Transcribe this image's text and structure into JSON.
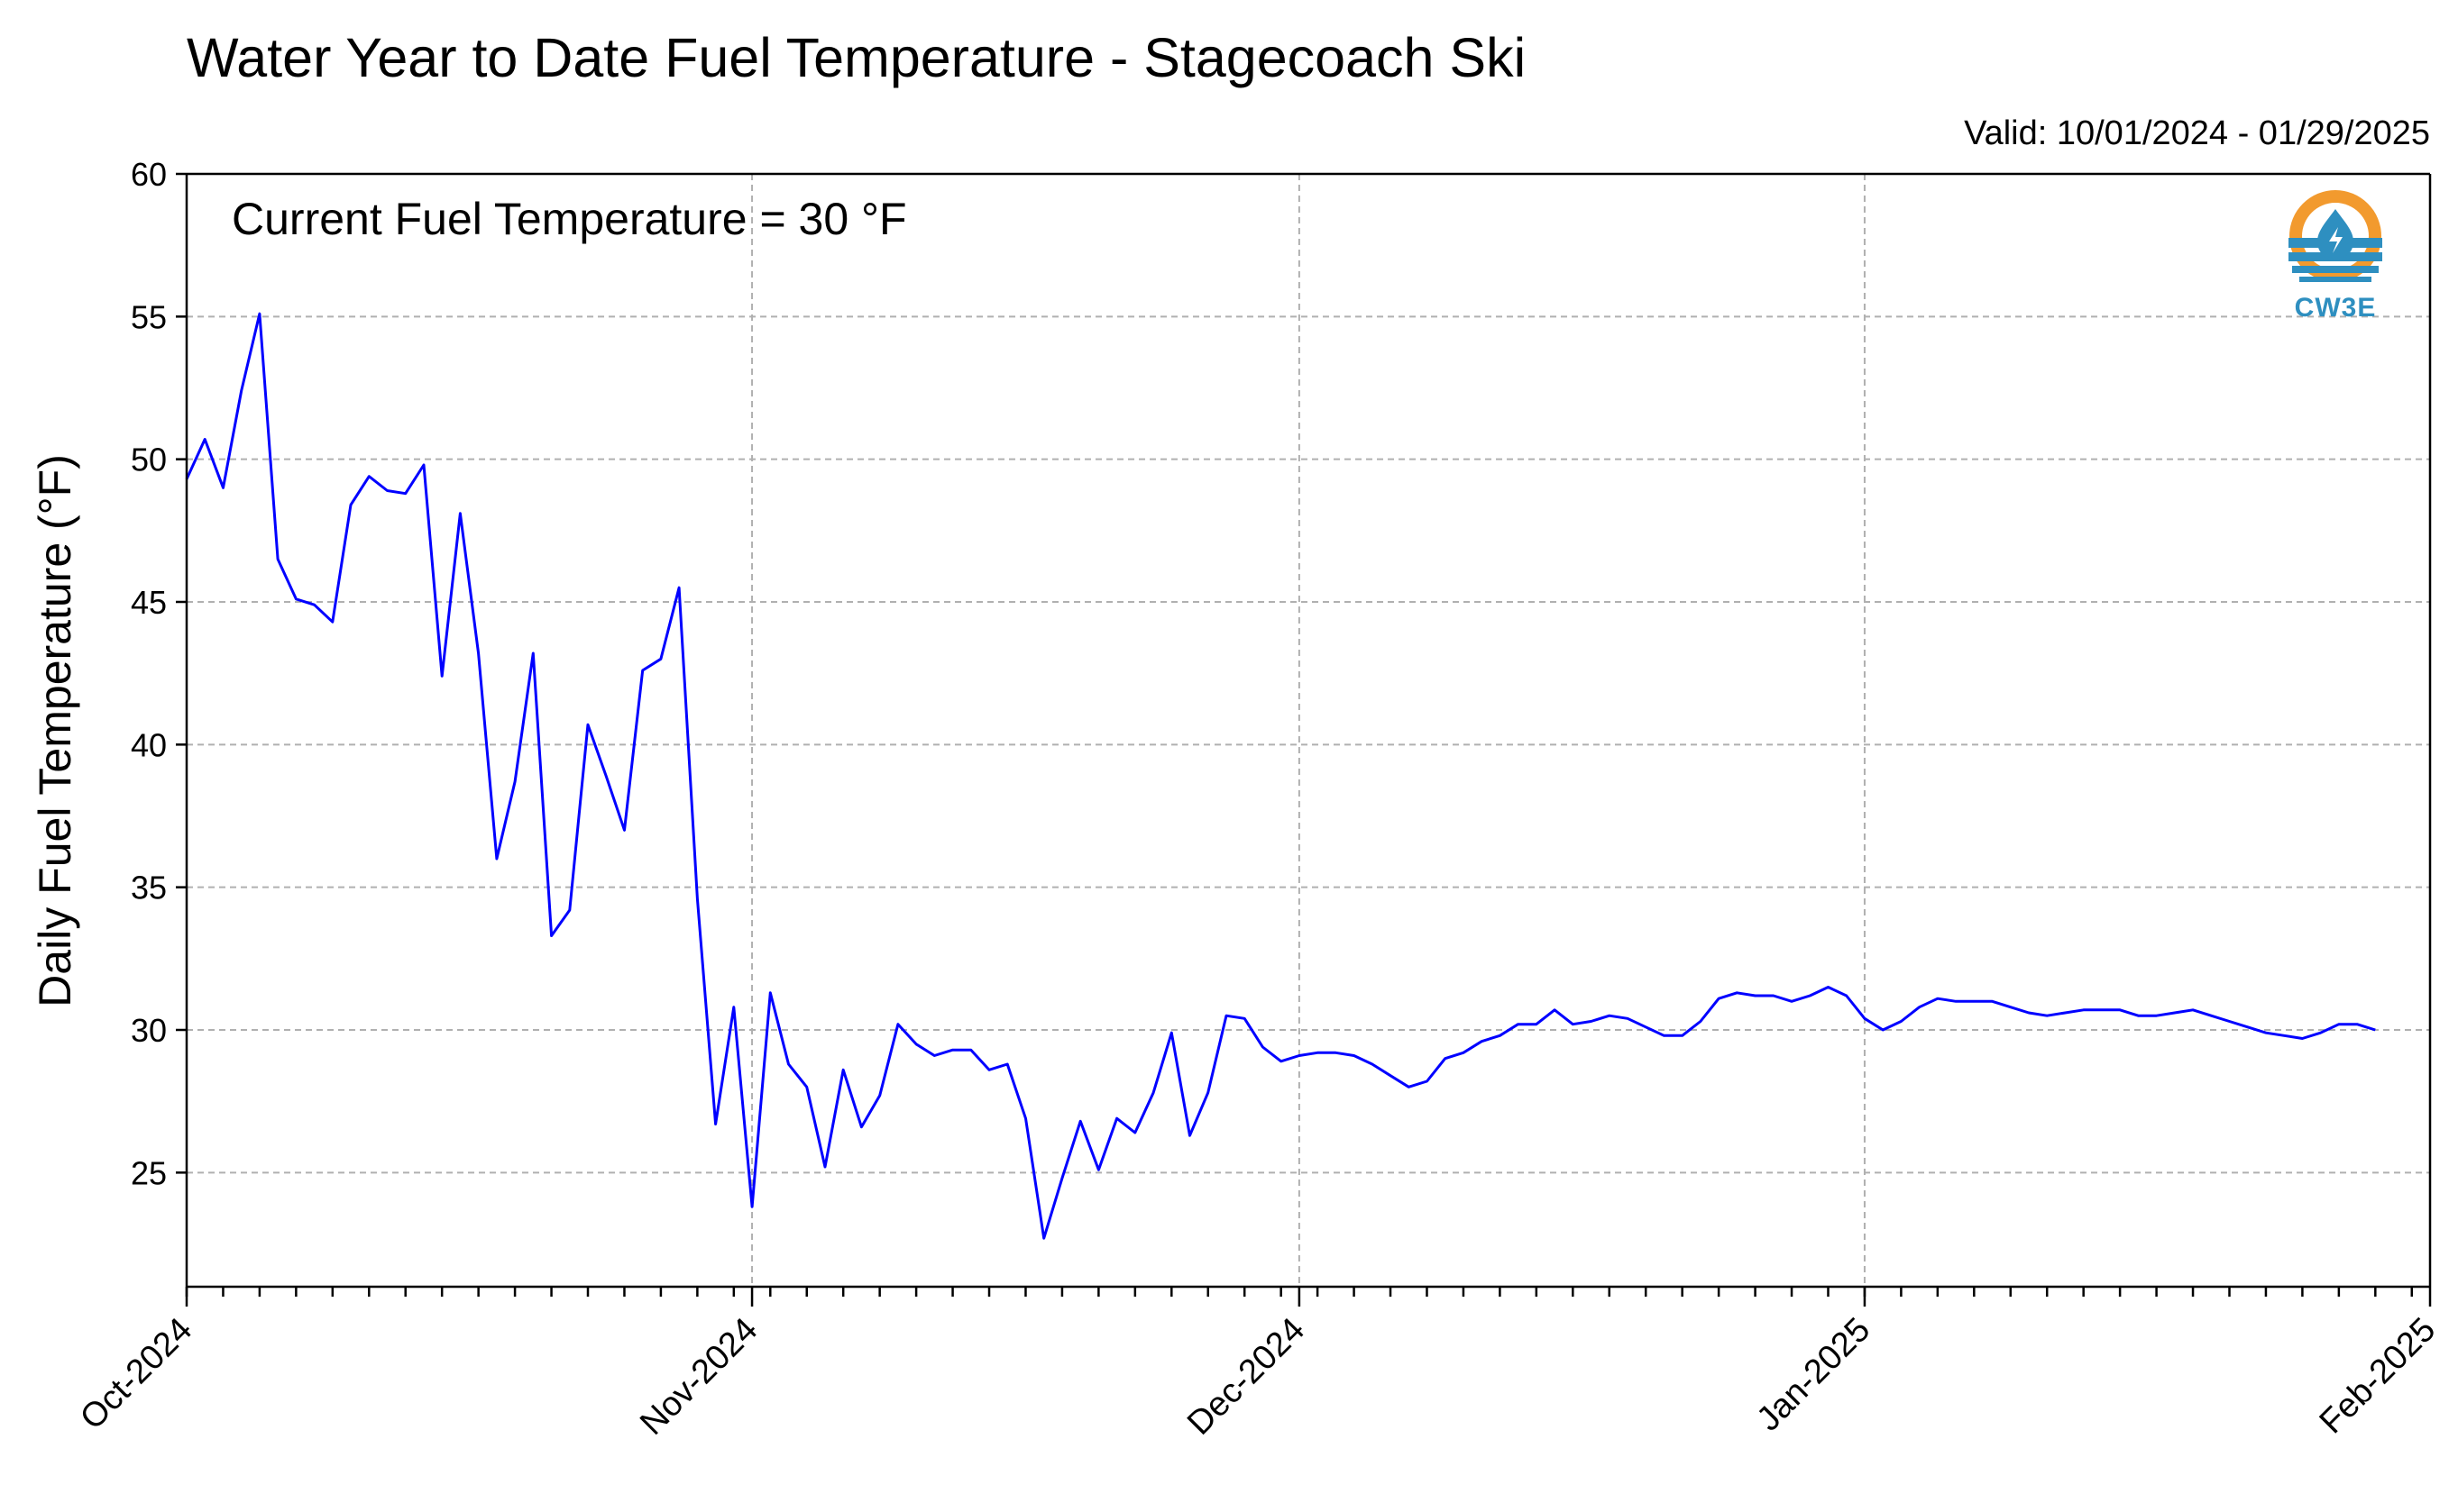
{
  "colors": {
    "series": "#0000ff",
    "grid": "#b0b0b0",
    "logo_orange": "#f29a2e",
    "logo_blue": "#2e8fc0"
  },
  "logo": {
    "text": "CW3E",
    "icon": "cw3e-water-drop-logo"
  },
  "chart_data": {
    "type": "line",
    "title": "Water Year to Date Fuel Temperature - Stagecoach Ski",
    "subtitle": "Valid: 10/01/2024 - 01/29/2025",
    "annotation": "Current Fuel Temperature = 30 °F",
    "ylabel": "Daily Fuel Temperature (°F)",
    "xlabel": "",
    "xlim": [
      "2024-10-01",
      "2025-02-01"
    ],
    "ylim": [
      21,
      60
    ],
    "yticks": [
      25,
      30,
      35,
      40,
      45,
      50,
      55,
      60
    ],
    "xticks": [
      {
        "date": "2024-10-01",
        "label": "Oct-2024"
      },
      {
        "date": "2024-11-01",
        "label": "Nov-2024"
      },
      {
        "date": "2024-12-01",
        "label": "Dec-2024"
      },
      {
        "date": "2025-01-01",
        "label": "Jan-2025"
      },
      {
        "date": "2025-02-01",
        "label": "Feb-2025"
      }
    ],
    "grid": true,
    "legend": "none",
    "series": [
      {
        "x": [
          "2024-10-01",
          "2024-10-02",
          "2024-10-03",
          "2024-10-04",
          "2024-10-05",
          "2024-10-06",
          "2024-10-07",
          "2024-10-08",
          "2024-10-09",
          "2024-10-10",
          "2024-10-11",
          "2024-10-12",
          "2024-10-13",
          "2024-10-14",
          "2024-10-15",
          "2024-10-16",
          "2024-10-17",
          "2024-10-18",
          "2024-10-19",
          "2024-10-20",
          "2024-10-21",
          "2024-10-22",
          "2024-10-23",
          "2024-10-24",
          "2024-10-25",
          "2024-10-26",
          "2024-10-27",
          "2024-10-28",
          "2024-10-29",
          "2024-10-30",
          "2024-10-31",
          "2024-11-01",
          "2024-11-02",
          "2024-11-03",
          "2024-11-04",
          "2024-11-05",
          "2024-11-06",
          "2024-11-07",
          "2024-11-08",
          "2024-11-09",
          "2024-11-10",
          "2024-11-11",
          "2024-11-12",
          "2024-11-13",
          "2024-11-14",
          "2024-11-15",
          "2024-11-16",
          "2024-11-17",
          "2024-11-18",
          "2024-11-19",
          "2024-11-20",
          "2024-11-21",
          "2024-11-22",
          "2024-11-23",
          "2024-11-24",
          "2024-11-25",
          "2024-11-26",
          "2024-11-27",
          "2024-11-28",
          "2024-11-29",
          "2024-11-30",
          "2024-12-01",
          "2024-12-02",
          "2024-12-03",
          "2024-12-04",
          "2024-12-05",
          "2024-12-06",
          "2024-12-07",
          "2024-12-08",
          "2024-12-09",
          "2024-12-10",
          "2024-12-11",
          "2024-12-12",
          "2024-12-13",
          "2024-12-14",
          "2024-12-15",
          "2024-12-16",
          "2024-12-17",
          "2024-12-18",
          "2024-12-19",
          "2024-12-20",
          "2024-12-21",
          "2024-12-22",
          "2024-12-23",
          "2024-12-24",
          "2024-12-25",
          "2024-12-26",
          "2024-12-27",
          "2024-12-28",
          "2024-12-29",
          "2024-12-30",
          "2024-12-31",
          "2025-01-01",
          "2025-01-02",
          "2025-01-03",
          "2025-01-04",
          "2025-01-05",
          "2025-01-06",
          "2025-01-07",
          "2025-01-08",
          "2025-01-09",
          "2025-01-10",
          "2025-01-11",
          "2025-01-12",
          "2025-01-13",
          "2025-01-14",
          "2025-01-15",
          "2025-01-16",
          "2025-01-17",
          "2025-01-18",
          "2025-01-19",
          "2025-01-20",
          "2025-01-21",
          "2025-01-22",
          "2025-01-23",
          "2025-01-24",
          "2025-01-25",
          "2025-01-26",
          "2025-01-27",
          "2025-01-28",
          "2025-01-29"
        ],
        "y": [
          49.3,
          50.7,
          49.0,
          52.4,
          55.1,
          46.5,
          45.1,
          44.9,
          44.3,
          48.4,
          49.4,
          48.9,
          48.8,
          49.8,
          42.4,
          48.1,
          43.2,
          36.0,
          38.7,
          43.2,
          33.3,
          34.2,
          40.7,
          38.9,
          37.0,
          42.6,
          43.0,
          45.5,
          34.6,
          26.7,
          30.8,
          23.8,
          31.3,
          28.8,
          28.0,
          25.2,
          28.6,
          26.6,
          27.7,
          30.2,
          29.5,
          29.1,
          29.3,
          29.3,
          28.6,
          28.8,
          26.9,
          22.7,
          24.8,
          26.8,
          25.1,
          26.9,
          26.4,
          27.8,
          29.9,
          26.3,
          27.8,
          30.5,
          30.4,
          29.4,
          28.9,
          29.1,
          29.2,
          29.2,
          29.1,
          28.8,
          28.4,
          28.0,
          28.2,
          29.0,
          29.2,
          29.6,
          29.8,
          30.2,
          30.2,
          30.7,
          30.2,
          30.3,
          30.5,
          30.4,
          30.1,
          29.8,
          29.8,
          30.3,
          31.1,
          31.3,
          31.2,
          31.2,
          31.0,
          31.2,
          31.5,
          31.2,
          30.4,
          30.0,
          30.3,
          30.8,
          31.1,
          31.0,
          31.0,
          31.0,
          30.8,
          30.6,
          30.5,
          30.6,
          30.7,
          30.7,
          30.7,
          30.5,
          30.5,
          30.6,
          30.7,
          30.5,
          30.3,
          30.1,
          29.9,
          29.8,
          29.7,
          29.9,
          30.2,
          30.2,
          30.0
        ]
      }
    ]
  }
}
